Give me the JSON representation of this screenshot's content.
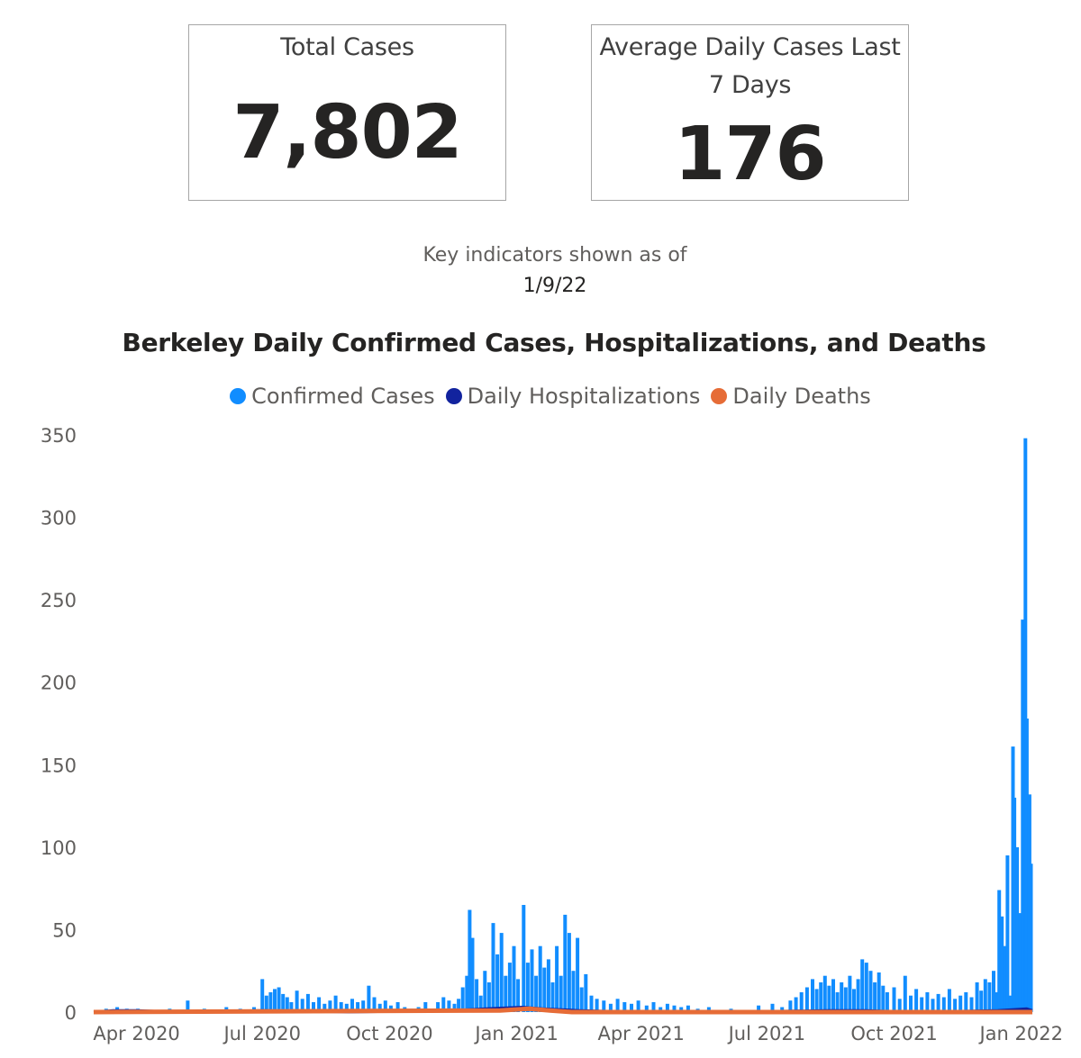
{
  "cards": {
    "total": {
      "label": "Total Cases",
      "value": "7,802"
    },
    "average": {
      "label": "Average Daily Cases Last 7 Days",
      "value": "176"
    }
  },
  "as_of": {
    "label": "Key indicators shown as of",
    "date": "1/9/22"
  },
  "colors": {
    "cases": "#118dff",
    "hospitalizations": "#12239e",
    "deaths": "#e66c37"
  },
  "chart_data": {
    "type": "bar",
    "title": "Berkeley Daily Confirmed Cases, Hospitalizations, and Deaths",
    "xlabel": "",
    "ylabel": "",
    "ylim": [
      0,
      350
    ],
    "yticks": [
      0,
      50,
      100,
      150,
      200,
      250,
      300,
      350
    ],
    "x_range": [
      "2020-03-01",
      "2022-01-09"
    ],
    "xticks": [
      {
        "label": "Apr 2020",
        "date": "2020-04-01"
      },
      {
        "label": "Jul 2020",
        "date": "2020-07-01"
      },
      {
        "label": "Oct 2020",
        "date": "2020-10-01"
      },
      {
        "label": "Jan 2021",
        "date": "2021-01-01"
      },
      {
        "label": "Apr 2021",
        "date": "2021-04-01"
      },
      {
        "label": "Jul 2021",
        "date": "2021-07-01"
      },
      {
        "label": "Oct 2021",
        "date": "2021-10-01"
      },
      {
        "label": "Jan 2022",
        "date": "2022-01-01"
      }
    ],
    "legend_position": "top-center",
    "series": [
      {
        "name": "Confirmed Cases",
        "type": "bar",
        "points": [
          [
            "2020-03-10",
            2
          ],
          [
            "2020-03-18",
            3
          ],
          [
            "2020-03-25",
            2
          ],
          [
            "2020-04-02",
            2
          ],
          [
            "2020-04-12",
            1
          ],
          [
            "2020-04-25",
            2
          ],
          [
            "2020-05-08",
            7
          ],
          [
            "2020-05-20",
            2
          ],
          [
            "2020-06-05",
            3
          ],
          [
            "2020-06-15",
            2
          ],
          [
            "2020-06-25",
            3
          ],
          [
            "2020-07-01",
            20
          ],
          [
            "2020-07-04",
            10
          ],
          [
            "2020-07-07",
            12
          ],
          [
            "2020-07-10",
            14
          ],
          [
            "2020-07-13",
            15
          ],
          [
            "2020-07-16",
            11
          ],
          [
            "2020-07-19",
            9
          ],
          [
            "2020-07-22",
            6
          ],
          [
            "2020-07-26",
            13
          ],
          [
            "2020-07-30",
            8
          ],
          [
            "2020-08-03",
            11
          ],
          [
            "2020-08-07",
            6
          ],
          [
            "2020-08-11",
            9
          ],
          [
            "2020-08-15",
            5
          ],
          [
            "2020-08-19",
            7
          ],
          [
            "2020-08-23",
            10
          ],
          [
            "2020-08-27",
            6
          ],
          [
            "2020-08-31",
            5
          ],
          [
            "2020-09-04",
            8
          ],
          [
            "2020-09-08",
            6
          ],
          [
            "2020-09-12",
            7
          ],
          [
            "2020-09-16",
            16
          ],
          [
            "2020-09-20",
            9
          ],
          [
            "2020-09-24",
            5
          ],
          [
            "2020-09-28",
            7
          ],
          [
            "2020-10-02",
            4
          ],
          [
            "2020-10-07",
            6
          ],
          [
            "2020-10-12",
            3
          ],
          [
            "2020-10-17",
            2
          ],
          [
            "2020-10-22",
            3
          ],
          [
            "2020-10-27",
            6
          ],
          [
            "2020-11-01",
            2
          ],
          [
            "2020-11-05",
            6
          ],
          [
            "2020-11-09",
            9
          ],
          [
            "2020-11-13",
            7
          ],
          [
            "2020-11-17",
            5
          ],
          [
            "2020-11-20",
            8
          ],
          [
            "2020-11-23",
            15
          ],
          [
            "2020-11-26",
            22
          ],
          [
            "2020-11-28",
            62
          ],
          [
            "2020-11-30",
            45
          ],
          [
            "2020-12-03",
            20
          ],
          [
            "2020-12-06",
            10
          ],
          [
            "2020-12-09",
            25
          ],
          [
            "2020-12-12",
            18
          ],
          [
            "2020-12-15",
            54
          ],
          [
            "2020-12-18",
            35
          ],
          [
            "2020-12-21",
            48
          ],
          [
            "2020-12-24",
            22
          ],
          [
            "2020-12-27",
            30
          ],
          [
            "2020-12-30",
            40
          ],
          [
            "2021-01-02",
            20
          ],
          [
            "2021-01-06",
            65
          ],
          [
            "2021-01-09",
            30
          ],
          [
            "2021-01-12",
            38
          ],
          [
            "2021-01-15",
            22
          ],
          [
            "2021-01-18",
            40
          ],
          [
            "2021-01-21",
            27
          ],
          [
            "2021-01-24",
            32
          ],
          [
            "2021-01-27",
            18
          ],
          [
            "2021-01-30",
            40
          ],
          [
            "2021-02-02",
            22
          ],
          [
            "2021-02-05",
            59
          ],
          [
            "2021-02-08",
            48
          ],
          [
            "2021-02-11",
            25
          ],
          [
            "2021-02-14",
            45
          ],
          [
            "2021-02-17",
            15
          ],
          [
            "2021-02-20",
            23
          ],
          [
            "2021-02-24",
            10
          ],
          [
            "2021-02-28",
            8
          ],
          [
            "2021-03-05",
            7
          ],
          [
            "2021-03-10",
            5
          ],
          [
            "2021-03-15",
            8
          ],
          [
            "2021-03-20",
            6
          ],
          [
            "2021-03-25",
            5
          ],
          [
            "2021-03-30",
            7
          ],
          [
            "2021-04-05",
            4
          ],
          [
            "2021-04-10",
            6
          ],
          [
            "2021-04-15",
            3
          ],
          [
            "2021-04-20",
            5
          ],
          [
            "2021-04-25",
            4
          ],
          [
            "2021-04-30",
            3
          ],
          [
            "2021-05-05",
            4
          ],
          [
            "2021-05-12",
            2
          ],
          [
            "2021-05-20",
            3
          ],
          [
            "2021-05-28",
            1
          ],
          [
            "2021-06-05",
            2
          ],
          [
            "2021-06-15",
            1
          ],
          [
            "2021-06-25",
            4
          ],
          [
            "2021-07-05",
            5
          ],
          [
            "2021-07-12",
            3
          ],
          [
            "2021-07-18",
            7
          ],
          [
            "2021-07-22",
            9
          ],
          [
            "2021-07-26",
            12
          ],
          [
            "2021-07-30",
            15
          ],
          [
            "2021-08-03",
            20
          ],
          [
            "2021-08-06",
            14
          ],
          [
            "2021-08-09",
            18
          ],
          [
            "2021-08-12",
            22
          ],
          [
            "2021-08-15",
            16
          ],
          [
            "2021-08-18",
            20
          ],
          [
            "2021-08-21",
            12
          ],
          [
            "2021-08-24",
            18
          ],
          [
            "2021-08-27",
            15
          ],
          [
            "2021-08-30",
            22
          ],
          [
            "2021-09-02",
            14
          ],
          [
            "2021-09-05",
            20
          ],
          [
            "2021-09-08",
            32
          ],
          [
            "2021-09-11",
            30
          ],
          [
            "2021-09-14",
            25
          ],
          [
            "2021-09-17",
            18
          ],
          [
            "2021-09-20",
            24
          ],
          [
            "2021-09-23",
            16
          ],
          [
            "2021-09-26",
            12
          ],
          [
            "2021-10-01",
            15
          ],
          [
            "2021-10-05",
            8
          ],
          [
            "2021-10-09",
            22
          ],
          [
            "2021-10-13",
            10
          ],
          [
            "2021-10-17",
            14
          ],
          [
            "2021-10-21",
            9
          ],
          [
            "2021-10-25",
            12
          ],
          [
            "2021-10-29",
            8
          ],
          [
            "2021-11-02",
            11
          ],
          [
            "2021-11-06",
            9
          ],
          [
            "2021-11-10",
            14
          ],
          [
            "2021-11-14",
            8
          ],
          [
            "2021-11-18",
            10
          ],
          [
            "2021-11-22",
            12
          ],
          [
            "2021-11-26",
            9
          ],
          [
            "2021-11-30",
            18
          ],
          [
            "2021-12-03",
            13
          ],
          [
            "2021-12-06",
            20
          ],
          [
            "2021-12-09",
            18
          ],
          [
            "2021-12-12",
            25
          ],
          [
            "2021-12-14",
            12
          ],
          [
            "2021-12-16",
            74
          ],
          [
            "2021-12-18",
            58
          ],
          [
            "2021-12-20",
            40
          ],
          [
            "2021-12-22",
            95
          ],
          [
            "2021-12-24",
            10
          ],
          [
            "2021-12-26",
            161
          ],
          [
            "2021-12-27",
            130
          ],
          [
            "2021-12-29",
            100
          ],
          [
            "2021-12-31",
            60
          ],
          [
            "2022-01-02",
            238
          ],
          [
            "2022-01-04",
            348
          ],
          [
            "2022-01-05",
            178
          ],
          [
            "2022-01-07",
            132
          ],
          [
            "2022-01-08",
            90
          ]
        ]
      },
      {
        "name": "Daily Hospitalizations",
        "type": "line",
        "points": [
          [
            "2020-03-01",
            0
          ],
          [
            "2020-03-15",
            1
          ],
          [
            "2020-04-01",
            1
          ],
          [
            "2020-05-01",
            0
          ],
          [
            "2020-07-01",
            1
          ],
          [
            "2020-09-01",
            0
          ],
          [
            "2020-11-15",
            1
          ],
          [
            "2020-12-10",
            2
          ],
          [
            "2021-01-05",
            3
          ],
          [
            "2021-01-20",
            2
          ],
          [
            "2021-02-15",
            1
          ],
          [
            "2021-04-01",
            0
          ],
          [
            "2021-06-01",
            0
          ],
          [
            "2021-08-15",
            1
          ],
          [
            "2021-09-10",
            1
          ],
          [
            "2021-10-15",
            0
          ],
          [
            "2021-12-15",
            1
          ],
          [
            "2022-01-05",
            2
          ],
          [
            "2022-01-09",
            1
          ]
        ]
      },
      {
        "name": "Daily Deaths",
        "type": "line",
        "points": [
          [
            "2020-03-01",
            0
          ],
          [
            "2020-12-20",
            1
          ],
          [
            "2021-01-10",
            2
          ],
          [
            "2021-01-25",
            1
          ],
          [
            "2021-02-10",
            0
          ],
          [
            "2022-01-09",
            0
          ]
        ]
      }
    ]
  }
}
